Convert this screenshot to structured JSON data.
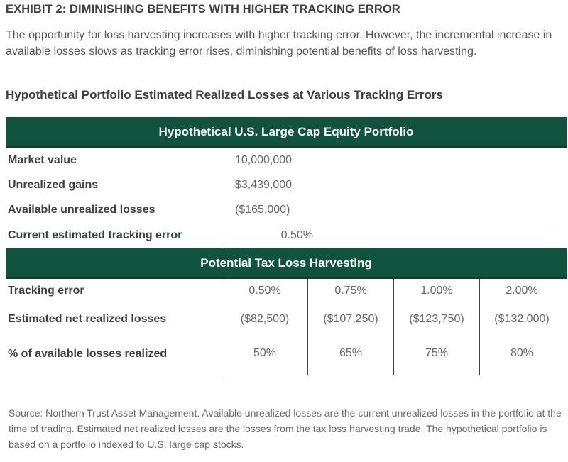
{
  "exhibit": {
    "title": "EXHIBIT 2: DIMINISHING BENEFITS WITH HIGHER TRACKING ERROR",
    "intro": "The opportunity for loss harvesting increases with higher tracking error. However, the incremental increase in available losses slows as tracking error rises, diminishing potential benefits of loss harvesting.",
    "table_title": "Hypothetical Portfolio Estimated Realized Losses at Various Tracking Errors"
  },
  "portfolio": {
    "header": "Hypothetical U.S. Large Cap Equity Portfolio",
    "rows": [
      {
        "label": "Market value",
        "value": "10,000,000"
      },
      {
        "label": "Unrealized gains",
        "value": "$3,439,000"
      },
      {
        "label": "Available unrealized losses",
        "value": "($165,000)"
      },
      {
        "label": "Current estimated tracking error",
        "value": "0.50%"
      }
    ]
  },
  "harvesting": {
    "header": "Potential Tax Loss Harvesting",
    "rows": [
      {
        "label": "Tracking error",
        "values": [
          "0.50%",
          "0.75%",
          "1.00%",
          "2.00%"
        ]
      },
      {
        "label": "Estimated net realized losses",
        "values": [
          "($82,500)",
          "($107,250)",
          "($123,750)",
          "($132,000)"
        ]
      },
      {
        "label": "% of available losses realized",
        "values": [
          "50%",
          "65%",
          "75%",
          "80%"
        ]
      }
    ]
  },
  "source": "Source: Northern Trust Asset Management. Available unrealized losses are the current unrealized losses in the portfolio at the time of trading. Estimated net realized losses are the losses from the tax loss harvesting trade. The hypothetical portfolio is based on a portfolio indexed to U.S. large cap stocks.",
  "colors": {
    "header_band": "#12533f",
    "header_text": "#ffffff",
    "body_text": "#3f3f3f"
  }
}
